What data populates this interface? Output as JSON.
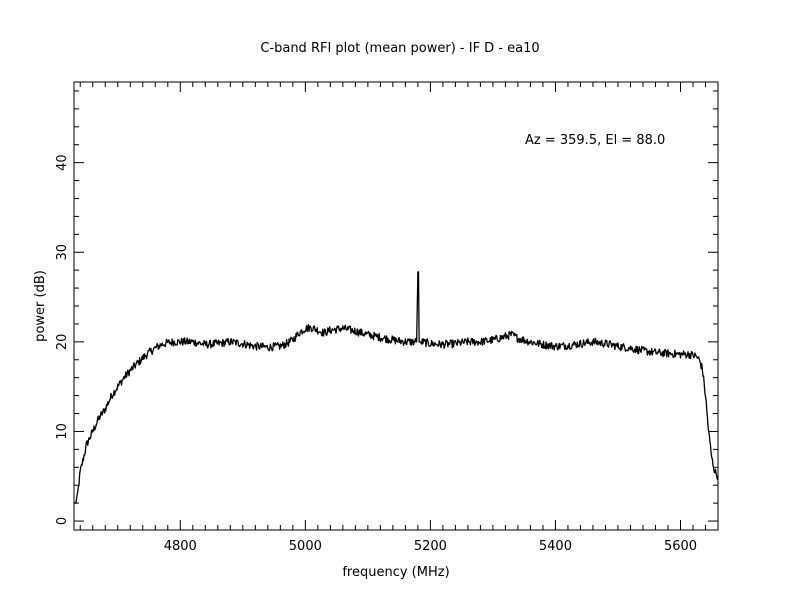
{
  "chart_data": {
    "type": "line",
    "title": "C-band RFI plot (mean power) - IF D - ea10",
    "xlabel": "frequency (MHz)",
    "ylabel": "power (dB)",
    "annotation": "Az = 359.5, El = 88.0",
    "xlim": [
      4630,
      5660
    ],
    "ylim": [
      -1,
      49
    ],
    "x_ticks": [
      4800,
      5000,
      5200,
      5400,
      5600
    ],
    "x_tick_labels": [
      "4800",
      "5000",
      "5200",
      "5400",
      "5600"
    ],
    "y_ticks": [
      0,
      10,
      20,
      30,
      40
    ],
    "y_tick_labels": [
      "0",
      "10",
      "20",
      "30",
      "40"
    ],
    "x_minor_step": 20,
    "y_minor_step": 2,
    "grid": false,
    "line_color": "#000000",
    "series": [
      {
        "x": [
          4632,
          4635,
          4640,
          4650,
          4660,
          4670,
          4680,
          4690,
          4700,
          4710,
          4720,
          4730,
          4740,
          4750,
          4760,
          4770,
          4780,
          4790,
          4800,
          4820,
          4840,
          4860,
          4880,
          4900,
          4920,
          4940,
          4960,
          4970,
          4980,
          4990,
          5000,
          5010,
          5020,
          5030,
          5040,
          5060,
          5080,
          5100,
          5120,
          5140,
          5160,
          5178,
          5180,
          5181,
          5182,
          5183,
          5184,
          5186,
          5200,
          5220,
          5240,
          5260,
          5280,
          5300,
          5320,
          5330,
          5340,
          5360,
          5380,
          5400,
          5420,
          5440,
          5460,
          5480,
          5500,
          5520,
          5540,
          5560,
          5580,
          5600,
          5615,
          5625,
          5630,
          5635,
          5640,
          5645,
          5650,
          5655,
          5660
        ],
        "y": [
          2.0,
          2.5,
          5.5,
          8.5,
          10.0,
          11.5,
          12.5,
          14.0,
          15.0,
          16.0,
          16.8,
          17.5,
          18.2,
          18.8,
          19.3,
          19.7,
          19.9,
          20.0,
          20.0,
          20.0,
          19.7,
          19.8,
          20.0,
          19.8,
          19.5,
          19.4,
          19.5,
          19.8,
          20.2,
          21.0,
          21.5,
          21.6,
          21.3,
          21.0,
          21.3,
          21.5,
          21.2,
          20.8,
          20.5,
          20.2,
          20.0,
          20.0,
          27.8,
          27.8,
          20.0,
          20.0,
          20.0,
          20.0,
          19.8,
          19.7,
          19.8,
          20.0,
          20.0,
          20.2,
          20.6,
          20.8,
          20.4,
          20.0,
          19.7,
          19.5,
          19.6,
          19.8,
          20.0,
          19.8,
          19.5,
          19.3,
          19.0,
          18.8,
          18.7,
          18.6,
          18.6,
          18.4,
          18.0,
          17.0,
          14.0,
          10.0,
          7.0,
          5.5,
          5.0
        ]
      }
    ]
  }
}
